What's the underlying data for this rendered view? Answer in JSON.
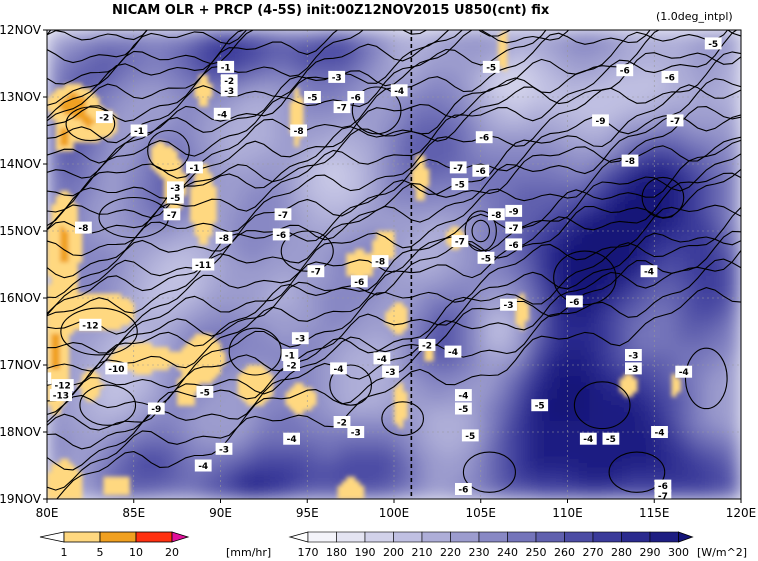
{
  "title": "NICAM  OLR + PRCP (4-5S) init:00Z12NOV2015  U850(cnt)  fix",
  "note": "(1.0deg_intpl)",
  "chart_data": {
    "type": "heatmap",
    "subtype": "hovmoller",
    "x_axis": {
      "range": [
        80,
        120
      ],
      "ticks": [
        "80E",
        "85E",
        "90E",
        "95E",
        "100E",
        "105E",
        "110E",
        "115E",
        "120E"
      ],
      "tick_values": [
        80,
        85,
        90,
        95,
        100,
        105,
        110,
        115,
        120
      ]
    },
    "y_axis": {
      "range": [
        "12NOV",
        "19NOV"
      ],
      "direction": "time increasing downward",
      "ticks": [
        "12NOV",
        "13NOV",
        "14NOV",
        "15NOV",
        "16NOV",
        "17NOV",
        "18NOV",
        "19NOV"
      ]
    },
    "grid": true,
    "reference_line": {
      "x": 101,
      "style": "dashed vertical"
    },
    "fields": {
      "olr": {
        "name": "OLR",
        "unit": "[W/m^2]",
        "levels": [
          170,
          180,
          190,
          200,
          210,
          220,
          230,
          240,
          250,
          260,
          270,
          280,
          290,
          300
        ],
        "colors": [
          "#ffffff",
          "#f4f4fa",
          "#e4e4f2",
          "#d2d2ea",
          "#c0c0e2",
          "#aeaed8",
          "#9c9cce",
          "#8888c4",
          "#7474ba",
          "#6060ae",
          "#4c4ca4",
          "#3a3a9a",
          "#2a2a8e",
          "#1e1e82",
          "#141478"
        ]
      },
      "precip": {
        "name": "PRCP",
        "unit": "[mm/hr]",
        "levels": [
          1,
          5,
          10,
          20
        ],
        "colors": [
          "#ffffff",
          "#ffd880",
          "#f0a020",
          "#ff3010",
          "#e0109a"
        ]
      },
      "u850": {
        "name": "U850",
        "style": "black contours",
        "labels": [
          -1,
          -2,
          -3,
          -4,
          -5,
          -6,
          -7,
          -8,
          -9,
          -10,
          -11,
          -12
        ]
      }
    },
    "contour_labels": [
      {
        "v": "-5",
        "x": 118.4,
        "y": 12.2
      },
      {
        "v": "-6",
        "x": 115.9,
        "y": 12.7
      },
      {
        "v": "-6",
        "x": 113.3,
        "y": 12.6
      },
      {
        "v": "-5",
        "x": 105.6,
        "y": 12.55
      },
      {
        "v": "-3",
        "x": 96.7,
        "y": 12.7
      },
      {
        "v": "-1",
        "x": 90.3,
        "y": 12.55
      },
      {
        "v": "-2",
        "x": 90.5,
        "y": 12.75
      },
      {
        "v": "-3",
        "x": 90.5,
        "y": 12.9
      },
      {
        "v": "-4",
        "x": 100.3,
        "y": 12.9
      },
      {
        "v": "-5",
        "x": 95.3,
        "y": 13.0
      },
      {
        "v": "-6",
        "x": 97.8,
        "y": 13.0
      },
      {
        "v": "-7",
        "x": 97.0,
        "y": 13.15
      },
      {
        "v": "-4",
        "x": 90.1,
        "y": 13.25
      },
      {
        "v": "-9",
        "x": 111.9,
        "y": 13.35
      },
      {
        "v": "-7",
        "x": 116.2,
        "y": 13.35
      },
      {
        "v": "-8",
        "x": 94.5,
        "y": 13.5
      },
      {
        "v": "-6",
        "x": 105.2,
        "y": 13.6
      },
      {
        "v": "-2",
        "x": 83.3,
        "y": 13.3
      },
      {
        "v": "-1",
        "x": 85.3,
        "y": 13.5
      },
      {
        "v": "-8",
        "x": 113.6,
        "y": 13.95
      },
      {
        "v": "-7",
        "x": 103.7,
        "y": 14.05
      },
      {
        "v": "-6",
        "x": 105.0,
        "y": 14.1
      },
      {
        "v": "-5",
        "x": 103.8,
        "y": 14.3
      },
      {
        "v": "-1",
        "x": 88.5,
        "y": 14.05
      },
      {
        "v": "-3",
        "x": 87.4,
        "y": 14.35
      },
      {
        "v": "-5",
        "x": 87.4,
        "y": 14.5
      },
      {
        "v": "-9",
        "x": 106.9,
        "y": 14.7
      },
      {
        "v": "-8",
        "x": 105.9,
        "y": 14.75
      },
      {
        "v": "-7",
        "x": 93.6,
        "y": 14.75
      },
      {
        "v": "-7",
        "x": 87.2,
        "y": 14.75
      },
      {
        "v": "-8",
        "x": 82.1,
        "y": 14.95
      },
      {
        "v": "-7",
        "x": 106.9,
        "y": 14.95
      },
      {
        "v": "-6",
        "x": 93.5,
        "y": 15.05
      },
      {
        "v": "-8",
        "x": 90.2,
        "y": 15.1
      },
      {
        "v": "-7",
        "x": 103.8,
        "y": 15.15
      },
      {
        "v": "-6",
        "x": 106.9,
        "y": 15.2
      },
      {
        "v": "-11",
        "x": 89.0,
        "y": 15.5
      },
      {
        "v": "-5",
        "x": 105.3,
        "y": 15.4
      },
      {
        "v": "-8",
        "x": 99.2,
        "y": 15.45
      },
      {
        "v": "-4",
        "x": 114.7,
        "y": 15.6
      },
      {
        "v": "-7",
        "x": 95.5,
        "y": 15.6
      },
      {
        "v": "-6",
        "x": 98.0,
        "y": 15.75
      },
      {
        "v": "-6",
        "x": 110.4,
        "y": 16.05
      },
      {
        "v": "-3",
        "x": 106.6,
        "y": 16.1
      },
      {
        "v": "-12",
        "x": 82.5,
        "y": 16.4
      },
      {
        "v": "-3",
        "x": 94.6,
        "y": 16.6
      },
      {
        "v": "-2",
        "x": 101.9,
        "y": 16.7
      },
      {
        "v": "-4",
        "x": 103.4,
        "y": 16.8
      },
      {
        "v": "-1",
        "x": 94.0,
        "y": 16.85
      },
      {
        "v": "-3",
        "x": 113.8,
        "y": 16.85
      },
      {
        "v": "-4",
        "x": 99.3,
        "y": 16.9
      },
      {
        "v": "-2",
        "x": 94.1,
        "y": 17.0
      },
      {
        "v": "-4",
        "x": 96.8,
        "y": 17.05
      },
      {
        "v": "-3",
        "x": 113.8,
        "y": 17.05
      },
      {
        "v": "-3",
        "x": 99.8,
        "y": 17.1
      },
      {
        "v": "-10",
        "x": 84.0,
        "y": 17.05
      },
      {
        "v": "-4",
        "x": 116.7,
        "y": 17.1
      },
      {
        "v": "-11",
        "x": 79.6,
        "y": 17.2
      },
      {
        "v": "-12",
        "x": 80.9,
        "y": 17.3
      },
      {
        "v": "-13",
        "x": 80.8,
        "y": 17.45
      },
      {
        "v": "-5",
        "x": 89.1,
        "y": 17.4
      },
      {
        "v": "-4",
        "x": 104.0,
        "y": 17.45
      },
      {
        "v": "-5",
        "x": 104.0,
        "y": 17.65
      },
      {
        "v": "-5",
        "x": 108.4,
        "y": 17.6
      },
      {
        "v": "-9",
        "x": 86.3,
        "y": 17.65
      },
      {
        "v": "-2",
        "x": 97.0,
        "y": 17.85
      },
      {
        "v": "-3",
        "x": 97.8,
        "y": 18.0
      },
      {
        "v": "-4",
        "x": 111.2,
        "y": 18.1
      },
      {
        "v": "-4",
        "x": 115.3,
        "y": 18.0
      },
      {
        "v": "-4",
        "x": 94.1,
        "y": 18.1
      },
      {
        "v": "-5",
        "x": 104.4,
        "y": 18.05
      },
      {
        "v": "-5",
        "x": 112.5,
        "y": 18.1
      },
      {
        "v": "-3",
        "x": 90.2,
        "y": 18.25
      },
      {
        "v": "-4",
        "x": 89.0,
        "y": 18.5
      },
      {
        "v": "-6",
        "x": 104.0,
        "y": 18.85
      },
      {
        "v": "-6",
        "x": 115.5,
        "y": 18.8
      },
      {
        "v": "-7",
        "x": 115.5,
        "y": 18.95
      }
    ]
  },
  "precip_colorbar": {
    "labels": [
      "1",
      "5",
      "10",
      "20"
    ],
    "unit": "[mm/hr]"
  },
  "olr_colorbar": {
    "labels": [
      "170",
      "180",
      "190",
      "200",
      "210",
      "220",
      "230",
      "240",
      "250",
      "260",
      "270",
      "280",
      "290",
      "300"
    ],
    "unit": "[W/m^2]"
  }
}
